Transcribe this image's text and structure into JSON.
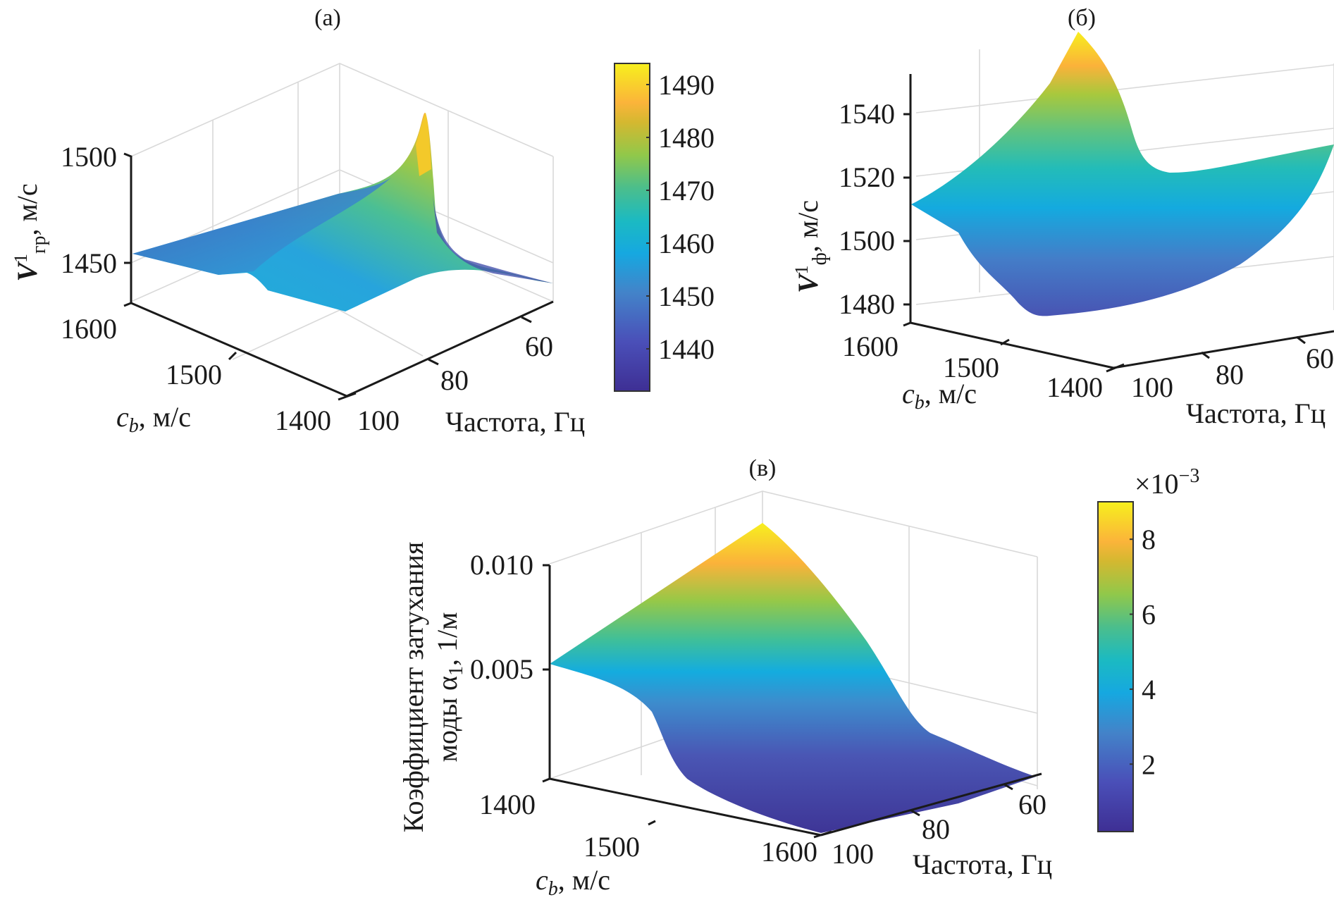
{
  "chart_data": [
    {
      "id": "a",
      "type": "surface3d",
      "panel_label": "(a)",
      "zlabel_main": "V",
      "zlabel_sup": "1",
      "zlabel_sub": "гр",
      "zlabel_units": ", м/с",
      "xlabel": "c_b, м/с",
      "xlabel_var": "c",
      "xlabel_sub": "b",
      "xlabel_units": ", м/с",
      "ylabel": "Частота, Гц",
      "xticks": [
        "1600",
        "1500",
        "1400"
      ],
      "yticks": [
        "60",
        "80",
        "100"
      ],
      "zticks": [
        "1500",
        "1450"
      ],
      "xlim": [
        1400,
        1600
      ],
      "ylim": [
        50,
        100
      ],
      "zlim": [
        1430,
        1500
      ],
      "colorbar": {
        "ticks": [
          "1490",
          "1480",
          "1470",
          "1460",
          "1450",
          "1440"
        ],
        "range": [
          1432,
          1494
        ]
      },
      "description": "Group velocity of mode 1 vs bottom sound speed and frequency; sharp peak ~1493 m/s near c_b≈1400, f≈60 Hz, minima ~1435 m/s"
    },
    {
      "id": "b",
      "type": "surface3d",
      "panel_label": "(б)",
      "zlabel_main": "V",
      "zlabel_sup": "1",
      "zlabel_sub": "ф",
      "zlabel_units": ", м/с",
      "xlabel": "c_b, м/с",
      "xlabel_var": "c",
      "xlabel_sub": "b",
      "xlabel_units": ", м/с",
      "ylabel": "Частота, Гц",
      "xticks": [
        "1600",
        "1500",
        "1400"
      ],
      "yticks": [
        "100",
        "80",
        "60"
      ],
      "zticks": [
        "1540",
        "1520",
        "1500",
        "1480"
      ],
      "zlim": [
        1475,
        1555
      ],
      "description": "Phase velocity of mode 1; max ~1553 m/s, corner ~1499 m/s at c_b=1600,f=100, min ~1476 m/s"
    },
    {
      "id": "v",
      "type": "surface3d",
      "panel_label": "(в)",
      "zlabel_line1": "Коэффициент затухания",
      "zlabel_line2": "моды α",
      "zlabel_line2_sub": "1",
      "zlabel_line2_units": ", 1/м",
      "xlabel": "c_b, м/с",
      "xlabel_var": "c",
      "xlabel_sub": "b",
      "xlabel_units": ", м/с",
      "ylabel": "Частота, Гц",
      "xticks": [
        "1400",
        "1500",
        "1600"
      ],
      "yticks": [
        "60",
        "80",
        "100"
      ],
      "zticks": [
        "0.010",
        "0.005"
      ],
      "zlim": [
        0,
        0.012
      ],
      "colorbar": {
        "ticks": [
          "8",
          "6",
          "4",
          "2"
        ],
        "exponent_label": "×10",
        "exponent": "−3",
        "range": [
          0.0002,
          0.009
        ]
      },
      "description": "Attenuation coefficient of mode 1; max ~0.009 1/m at c_b=1400, high frequency side; decreases to ~0.0002 at c_b=1600"
    }
  ]
}
